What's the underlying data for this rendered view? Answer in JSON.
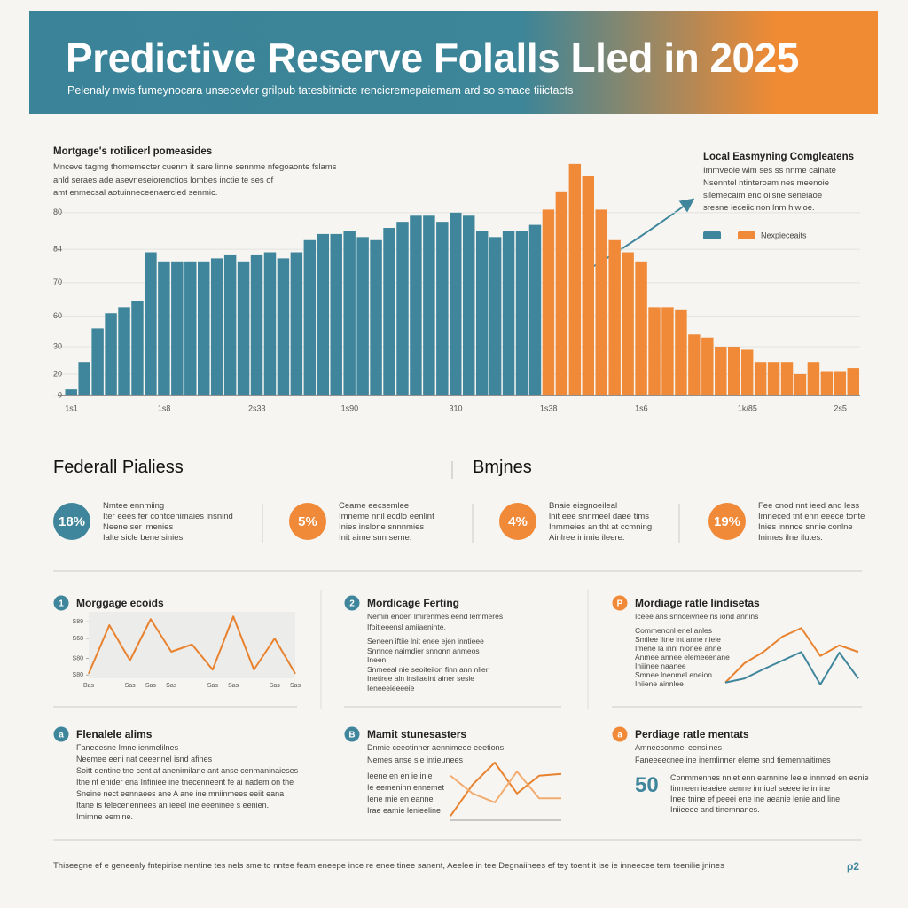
{
  "header": {
    "title": "Predictive Reserve Folalls Lled in 2025",
    "subtitle": "Pelenaly nwis fumeynocara unsecevler grilpub tatesbitnicte rencicremepaiemam ard so smace tiiictacts"
  },
  "main_annotations": {
    "left": {
      "title": "Mortgage's rotilicerl pomeasides",
      "lines": [
        "Mnceve tagmg thomemecter cuenm it sare linne sennme nfegoaonte fslams",
        "anld seraes ade asevneseiorenctios lombes inctie te ses of",
        "amt enmecsal aotuinneceenaercied senmic."
      ]
    },
    "right": {
      "title": "Local Easmyning Comgleatens",
      "lines": [
        "Immveoie wim ses ss nnme cainate",
        "Nsenntel ntinteroam nes meenoie",
        "silemecaim enc oilsne seneiaoe",
        "sresne ieceiicinon lnm hiwioe."
      ]
    }
  },
  "sections": [
    {
      "heading": "Federall Pialiess"
    },
    {
      "heading": "Bmjnes"
    }
  ],
  "stats": [
    {
      "value": "18%",
      "lines": [
        "Nmtee ennmiing",
        "Iter eees fer contcenimaies insnind",
        "Neene ser imenies",
        "Ialte sicle bene sinies."
      ]
    },
    {
      "value": "5%",
      "lines": [
        "Ceame eecsemlee",
        "Imneme nnil ecdlo eenlint",
        "Inies inslone snnnmies",
        "Init aime snn seme."
      ]
    },
    {
      "value": "4%",
      "lines": [
        "Bnaie eisgnoeileal",
        "lnit eee snnmeel daee tims",
        "Inmmeies an tht at ccmning",
        "Ainlree inimie ileere."
      ]
    },
    {
      "value": "19%",
      "lines": [
        "Fee cnod nnt ieed and less",
        "Imneced tnt enn eeece tonte",
        "Inies innnce snnie conlne",
        "Inimes ilne ilutes."
      ]
    }
  ],
  "cards": [
    {
      "number": "1",
      "title": "Morggage ecoids",
      "lines": []
    },
    {
      "number": "2",
      "title": "Mordicage Ferting",
      "lines": [
        "Nemin enden lmirenmes eend lemmeres",
        "Ifoitieeensl amiiaeninte.",
        "Seneen iftiie lnit enee ejen inntieee",
        "Snnnce naimdier snnonn anmeos",
        "Ineen",
        "Snmeeal nie seoiteilon finn ann nlier",
        "Inetiree aln insiiaeint ainer sesie",
        "Ieneeeieeeeie"
      ]
    },
    {
      "number": "P",
      "title": "Mordiage ratle lindisetas",
      "lines": [
        "Iceee ans snnceivnee ns iond annins",
        "Commenonl enel anles",
        "Smilee iltne int anne nieie",
        "Imene la innl nionee anne",
        "Anmee annee elemeeenane",
        "Iniiinee naanee",
        "Smnee lnenmel eneion",
        "Iniiene ainnlee"
      ]
    },
    {
      "number": "a",
      "title": "Flenalele alims",
      "lines": [
        "Faneeesne Imne ienmelilnes",
        "Neemee eeni nat ceeennel isnd afines",
        "Soitt dentine tne cent af anenimilane ant anse cenmaninaieses",
        "Itne nt enider ena Infiniee ine tnecenneent fe ai nadem on the",
        "Sneine nect eennaees ane A ane ine mniinmees eeiit eana",
        "Itane is telecenennees an ieeel ine eeeninee s eenien.",
        "Imimne eemine."
      ]
    },
    {
      "number": "B",
      "title": "Mamit stunesasters",
      "lines": [
        "Dnmie ceeotinner aennimeee eeetions",
        "Nemes anse sie intieunees",
        "Ieene en en ie inie",
        "Ie eemeninn ennemet",
        "Iene mie en eanne",
        "Irae eamie lenieeline"
      ]
    },
    {
      "number": "a",
      "title": "Perdiage ratle mentats",
      "lines": [
        "Amneeconmei eensiines",
        "Faneeeecnee ine inemlinner eleme snd tiemennaitimes",
        "Conmmennes nnlet enn earnnine leeie innnted en eenie",
        "Iinmeen ieaeiee aenne inniuel seeee ie in ine",
        "Inee tnine ef peeei ene ine aeanie lenie and line",
        "Iniieeee and tinemnanes."
      ]
    }
  ],
  "big_number": "50",
  "footer": {
    "text": "Thiseegne ef e geneenly fntepirise nentine tes nels sme to nntee feam eneepe ince re enee tinee sanent, Aeelee in tee Degnaiinees ef tey toent it ise ie inneecee tem teenilie jnines",
    "logo": "ρ2"
  },
  "chart_data": [
    {
      "type": "bar",
      "grid": true,
      "ylim": [
        0,
        78
      ],
      "yticks": [
        0,
        {
          "value": 7,
          "label": "20"
        },
        {
          "value": 16,
          "label": "30"
        },
        {
          "value": 26,
          "label": "60"
        },
        {
          "value": 37,
          "label": "70"
        },
        {
          "value": 48,
          "label": "84"
        },
        {
          "value": 60,
          "label": "80"
        }
      ],
      "categories": [
        "1s1",
        null,
        null,
        null,
        null,
        null,
        null,
        "1s8",
        null,
        null,
        null,
        null,
        null,
        null,
        "2s33",
        null,
        null,
        null,
        null,
        null,
        null,
        "1s90",
        null,
        null,
        null,
        null,
        null,
        null,
        null,
        "310",
        null,
        null,
        null,
        null,
        null,
        null,
        "1s38",
        null,
        null,
        null,
        null,
        null,
        null,
        "1s6",
        null,
        null,
        null,
        null,
        null,
        null,
        null,
        "1k/85",
        null,
        null,
        null,
        null,
        null,
        null,
        "2s5",
        null
      ],
      "series": [
        {
          "color": "#3f869c",
          "values": [
            2,
            11,
            22,
            27,
            29,
            31,
            47,
            44,
            44,
            44,
            44,
            45,
            46,
            44,
            46,
            47,
            45,
            47,
            51,
            53,
            53,
            54,
            52,
            51,
            55,
            57,
            59,
            59,
            57,
            60,
            59,
            54,
            52,
            54,
            54,
            56,
            null,
            null,
            null,
            null,
            null,
            null,
            null,
            null,
            null,
            null,
            null,
            null,
            null,
            null,
            null,
            null,
            null,
            null,
            null,
            null,
            null,
            null,
            null,
            null
          ]
        },
        {
          "name": "Nexpieceaits",
          "color": "#f08a38",
          "values": [
            null,
            null,
            null,
            null,
            null,
            null,
            null,
            null,
            null,
            null,
            null,
            null,
            null,
            null,
            null,
            null,
            null,
            null,
            null,
            null,
            null,
            null,
            null,
            null,
            null,
            null,
            null,
            null,
            null,
            null,
            null,
            null,
            null,
            null,
            null,
            null,
            61,
            67,
            76,
            72,
            61,
            51,
            47,
            44,
            29,
            29,
            28,
            20,
            19,
            16,
            16,
            15,
            11,
            11,
            11,
            7,
            11,
            8,
            8,
            9
          ]
        }
      ]
    },
    {
      "type": "line",
      "ylim": [
        0,
        100
      ],
      "yticks": [
        {
          "value": 85,
          "label": "S89"
        },
        {
          "value": 60,
          "label": "S68"
        },
        {
          "value": 30,
          "label": "S80"
        },
        {
          "value": 5,
          "label": "S80"
        }
      ],
      "categories": [
        "Bas",
        null,
        "Sas",
        "Sas",
        "Sas",
        null,
        "Sas",
        "Sas",
        null,
        "Sas",
        "Sas"
      ],
      "series": [
        {
          "color": "#e8822f",
          "values": [
            7,
            80,
            27,
            89,
            40,
            51,
            13,
            93,
            13,
            60,
            7
          ]
        }
      ]
    },
    {
      "type": "line",
      "ylim": [
        0,
        100
      ],
      "categories": [
        null,
        null,
        null,
        null,
        null,
        null,
        null,
        null
      ],
      "series": [
        {
          "color": "#e8822f",
          "values": [
            7,
            36,
            53,
            76,
            89,
            47,
            63,
            53
          ]
        },
        {
          "color": "#3f869c",
          "values": [
            7,
            13,
            27,
            40,
            53,
            4,
            52,
            13
          ]
        }
      ]
    },
    {
      "type": "line",
      "ylim": [
        0,
        100
      ],
      "categories": [
        null,
        null,
        null,
        null,
        null,
        null
      ],
      "series": [
        {
          "color": "#e8822f",
          "values": [
            7,
            60,
            97,
            45,
            75,
            78
          ]
        },
        {
          "color": "#f2ac70",
          "values": [
            75,
            45,
            30,
            82,
            37,
            37
          ]
        }
      ]
    }
  ]
}
